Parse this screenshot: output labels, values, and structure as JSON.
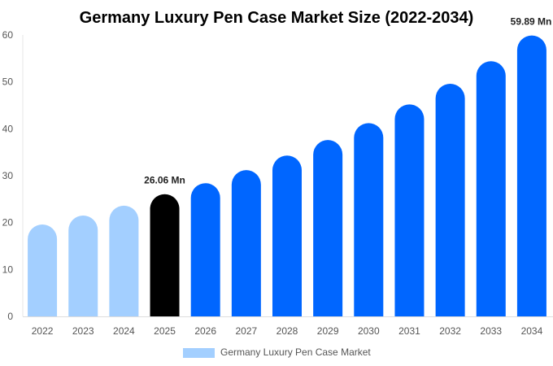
{
  "chart_data": {
    "type": "bar",
    "title": "Germany Luxury Pen Case Market Size (2022-2034)",
    "xlabel": "",
    "ylabel": "",
    "ylim": [
      0,
      60
    ],
    "yticks": [
      0,
      10,
      20,
      30,
      40,
      50,
      60
    ],
    "grid": false,
    "legend_placement": "bottom",
    "categories": [
      "2022",
      "2023",
      "2024",
      "2025",
      "2026",
      "2027",
      "2028",
      "2029",
      "2030",
      "2031",
      "2032",
      "2033",
      "2034"
    ],
    "series": [
      {
        "name": "Germany Luxury Pen Case Market",
        "values": [
          19.6,
          21.5,
          23.6,
          26.06,
          28.4,
          31.2,
          34.3,
          37.6,
          41.2,
          45.2,
          49.6,
          54.4,
          59.89
        ]
      }
    ],
    "data_labels": [
      {
        "category": "2025",
        "text": "26.06 Mn"
      },
      {
        "category": "2034",
        "text": "59.89 Mn"
      }
    ],
    "colors": {
      "historical": "#a3cfff",
      "current": "#000000",
      "forecast": "#0066ff"
    }
  }
}
